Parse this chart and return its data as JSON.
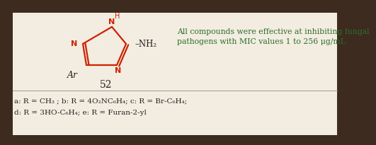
{
  "bg_outer": "#3d2b1f",
  "bg_inner": "#f2ede0",
  "title_text": "All compounds were effective at inhibiting fungal\npathogens with MIC values 1 to 256 μg/mL",
  "title_color": "#2d6e2d",
  "compound_number": "52",
  "compound_number_color": "#222222",
  "substituents_line1": "a: R = CH₃ ; b: R = 4O₂NC₆H₄; c: R = Br-C₆H₄;",
  "substituents_line2": "d: R = 3HO-C₆H₄; e: R = Furan-2-yl",
  "substituents_color": "#222222",
  "ring_color": "#cc2200",
  "text_color": "#222222",
  "ar_label": "Ar",
  "nh2_label": "NH₂"
}
